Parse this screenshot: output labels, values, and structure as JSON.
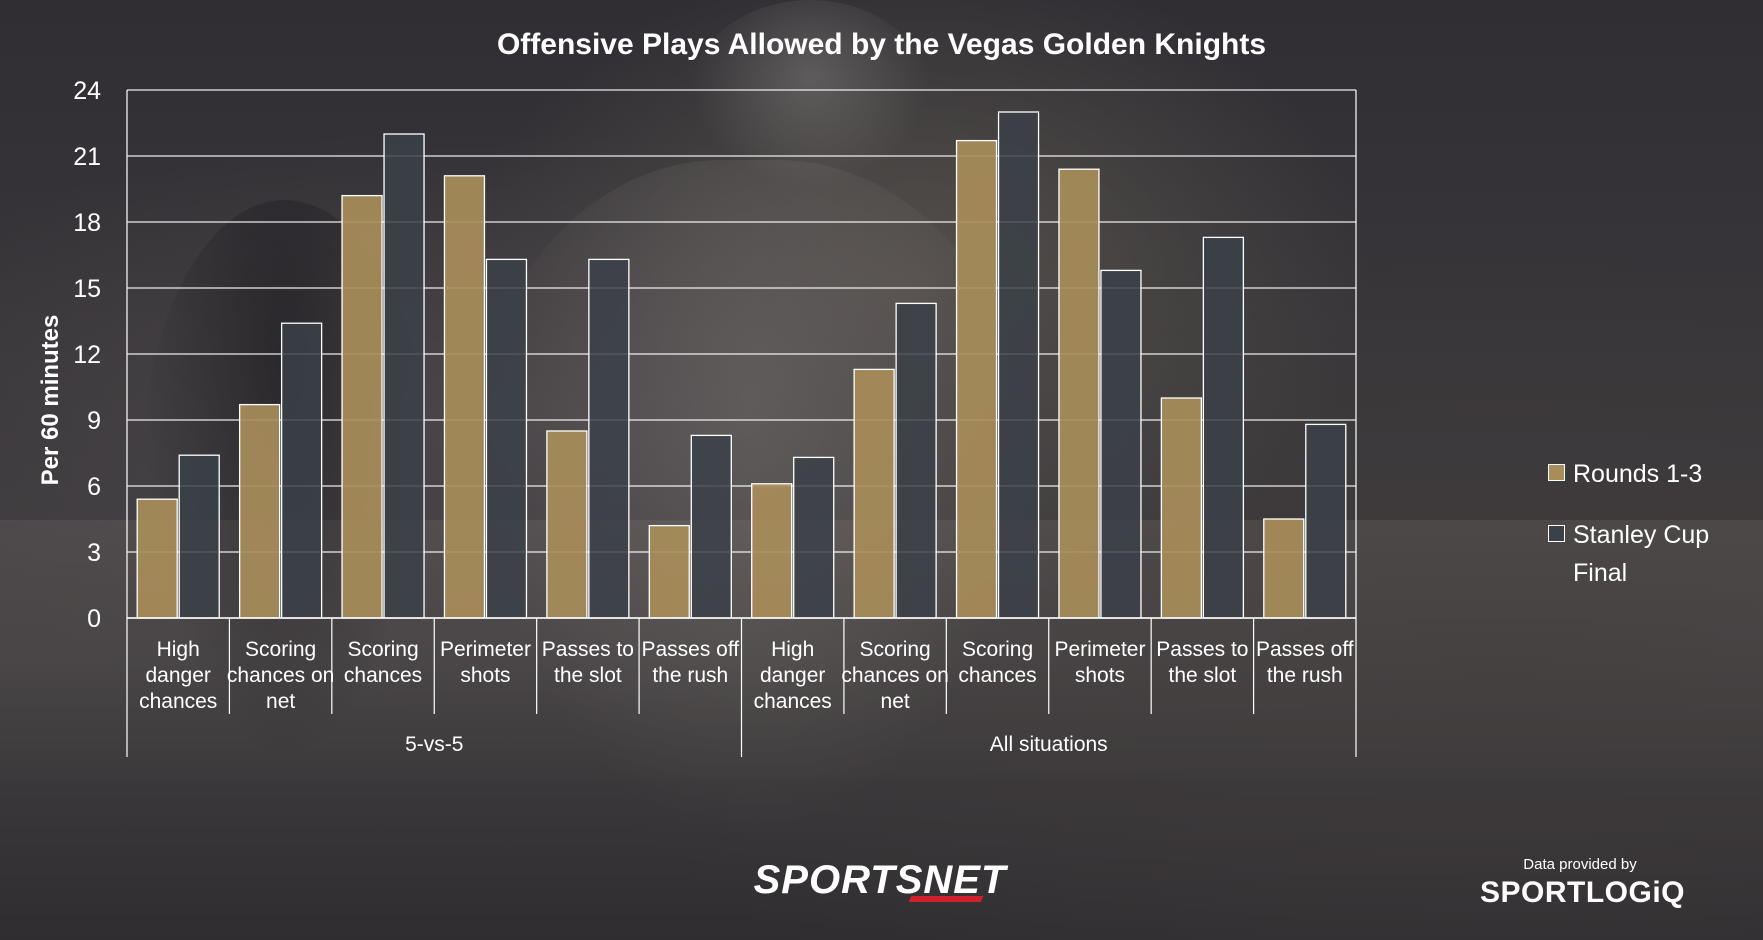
{
  "chart_data": {
    "type": "bar",
    "title": "Offensive Plays Allowed by the Vegas Golden Knights",
    "ylabel": "Per 60 minutes",
    "ylim": [
      0,
      24
    ],
    "yticks": [
      0,
      3,
      6,
      9,
      12,
      15,
      18,
      21,
      24
    ],
    "grid": true,
    "legend_position": "right",
    "groups": [
      {
        "label": "5-vs-5",
        "start": 0,
        "end": 5
      },
      {
        "label": "All situations",
        "start": 6,
        "end": 11
      }
    ],
    "categories": [
      [
        "High",
        "danger",
        "chances"
      ],
      [
        "Scoring",
        "chances on",
        "net"
      ],
      [
        "Scoring",
        "chances"
      ],
      [
        "Perimeter",
        "shots"
      ],
      [
        "Passes to",
        "the slot"
      ],
      [
        "Passes off",
        "the rush"
      ],
      [
        "High",
        "danger",
        "chances"
      ],
      [
        "Scoring",
        "chances on",
        "net"
      ],
      [
        "Scoring",
        "chances"
      ],
      [
        "Perimeter",
        "shots"
      ],
      [
        "Passes to",
        "the slot"
      ],
      [
        "Passes off",
        "the rush"
      ]
    ],
    "series": [
      {
        "name": "Rounds 1-3",
        "color": "#a88d5a",
        "values": [
          5.4,
          9.7,
          19.2,
          20.1,
          8.5,
          4.2,
          6.1,
          11.3,
          21.7,
          20.4,
          10.0,
          4.5
        ]
      },
      {
        "name": "Stanley Cup Final",
        "color": "#3b4148",
        "values": [
          7.4,
          13.4,
          22.0,
          16.3,
          16.3,
          8.3,
          7.3,
          14.3,
          23.0,
          15.8,
          17.3,
          8.8
        ]
      }
    ]
  },
  "legend": {
    "rounds": "Rounds 1-3",
    "final_line1": "Stanley Cup",
    "final_line2": "Final"
  },
  "branding": {
    "network": "SPORTSNET",
    "provider_label": "Data provided by",
    "provider": "SPORTLOGiQ"
  }
}
